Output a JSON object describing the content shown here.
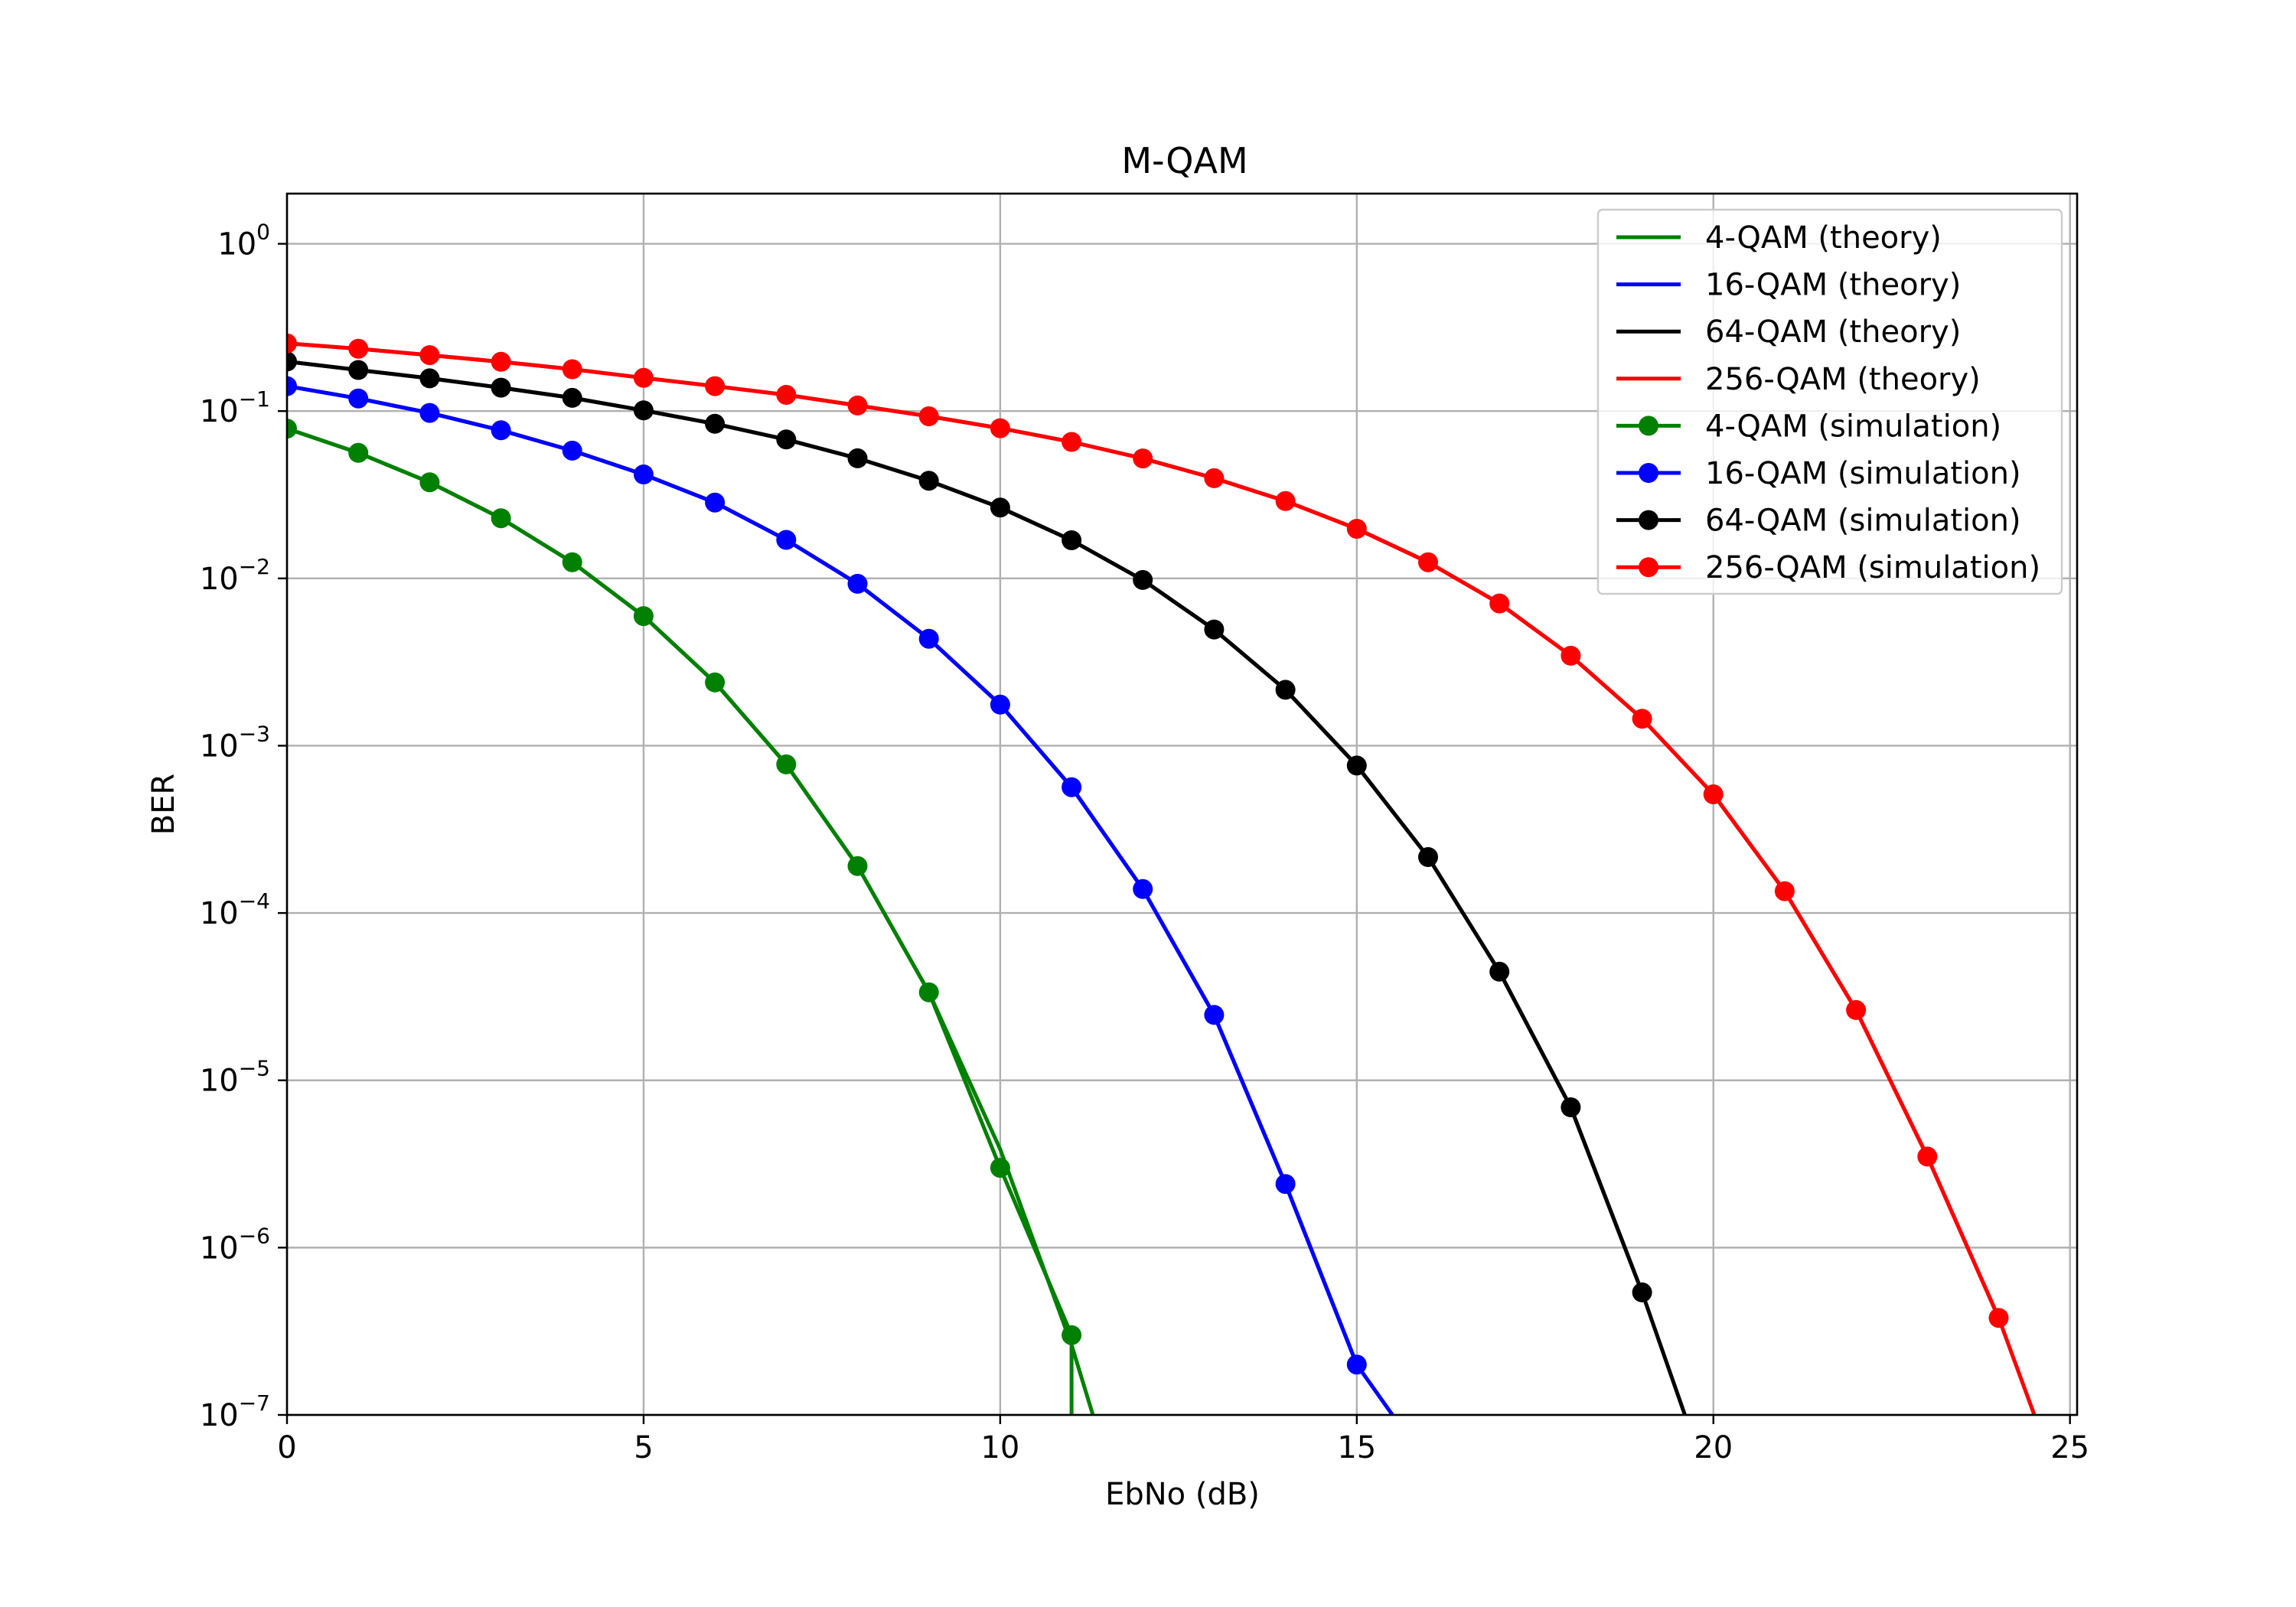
{
  "chart_data": {
    "type": "line",
    "title": "M-QAM",
    "xlabel": "EbNo (dB)",
    "ylabel": "BER",
    "xlim": [
      0,
      25.1
    ],
    "ylim_exponent": [
      -7,
      0.3
    ],
    "yscale": "log",
    "grid": true,
    "legend_position": "top-right",
    "xticks": [
      "0",
      "5",
      "10",
      "15",
      "20",
      "25"
    ],
    "xtick_values": [
      0,
      5,
      10,
      15,
      20,
      25
    ],
    "yticks_base": "10",
    "yticks_exponents": [
      "0",
      "−1",
      "−2",
      "−3",
      "−4",
      "−5",
      "−6",
      "−7"
    ],
    "ytick_values": [
      0,
      -1,
      -2,
      -3,
      -4,
      -5,
      -6,
      -7
    ],
    "series": [
      {
        "name": "4-QAM (theory)",
        "kind": "theory",
        "color": "#008000",
        "x": [
          0,
          1,
          2,
          3,
          4,
          5,
          6,
          7,
          8,
          9,
          10,
          11,
          11.3
        ],
        "y": [
          0.0786,
          0.0563,
          0.0375,
          0.0229,
          0.0125,
          0.00595,
          0.00239,
          0.000773,
          0.000191,
          3.36e-05,
          3.87e-06,
          2.62e-07,
          1e-07
        ]
      },
      {
        "name": "16-QAM (theory)",
        "kind": "theory",
        "color": "#0000ff",
        "x": [
          0,
          1,
          2,
          3,
          4,
          5,
          6,
          7,
          8,
          9,
          10,
          11,
          12,
          13,
          14,
          15,
          15.5
        ],
        "y": [
          0.141,
          0.119,
          0.0975,
          0.0768,
          0.058,
          0.0418,
          0.0284,
          0.017,
          0.00928,
          0.00436,
          0.00176,
          0.000565,
          0.000139,
          2.46e-05,
          2.4e-06,
          2e-07,
          1e-07
        ]
      },
      {
        "name": "64-QAM (theory)",
        "kind": "theory",
        "color": "#000000",
        "x": [
          0,
          1,
          2,
          3,
          4,
          5,
          6,
          7,
          8,
          9,
          10,
          11,
          12,
          13,
          14,
          15,
          16,
          17,
          18,
          19,
          19.6
        ],
        "y": [
          0.198,
          0.176,
          0.157,
          0.138,
          0.12,
          0.101,
          0.084,
          0.0677,
          0.0522,
          0.0383,
          0.0265,
          0.0169,
          0.00979,
          0.00495,
          0.00216,
          0.000761,
          0.000216,
          4.46e-05,
          6.9e-06,
          5.4e-07,
          1e-07
        ]
      },
      {
        "name": "256-QAM (theory)",
        "kind": "theory",
        "color": "#ff0000",
        "x": [
          0,
          1,
          2,
          3,
          4,
          5,
          6,
          7,
          8,
          9,
          10,
          11,
          12,
          13,
          14,
          15,
          16,
          17,
          18,
          19,
          20,
          21,
          22,
          23,
          24,
          24.5
        ],
        "y": [
          0.254,
          0.236,
          0.216,
          0.197,
          0.178,
          0.158,
          0.141,
          0.125,
          0.108,
          0.0931,
          0.079,
          0.0654,
          0.0521,
          0.0397,
          0.029,
          0.0198,
          0.0125,
          0.00708,
          0.00345,
          0.00145,
          0.000512,
          0.000135,
          2.63e-05,
          3.5e-06,
          3.8e-07,
          1e-07
        ]
      },
      {
        "name": "4-QAM (simulation)",
        "kind": "simulation",
        "color": "#008000",
        "x": [
          0,
          1,
          2,
          3,
          4,
          5,
          6,
          7,
          8,
          9,
          10,
          11
        ],
        "y": [
          0.0786,
          0.0563,
          0.0375,
          0.0229,
          0.0125,
          0.00595,
          0.00239,
          0.000773,
          0.000191,
          3.36e-05,
          3e-06,
          3e-07
        ],
        "drop_to": 1e-07
      },
      {
        "name": "16-QAM (simulation)",
        "kind": "simulation",
        "color": "#0000ff",
        "x": [
          0,
          1,
          2,
          3,
          4,
          5,
          6,
          7,
          8,
          9,
          10,
          11,
          12,
          13,
          14,
          15
        ],
        "y": [
          0.141,
          0.119,
          0.0975,
          0.0768,
          0.058,
          0.0418,
          0.0284,
          0.017,
          0.00928,
          0.00436,
          0.00176,
          0.000565,
          0.000139,
          2.46e-05,
          2.4e-06,
          2e-07
        ]
      },
      {
        "name": "64-QAM (simulation)",
        "kind": "simulation",
        "color": "#000000",
        "x": [
          0,
          1,
          2,
          3,
          4,
          5,
          6,
          7,
          8,
          9,
          10,
          11,
          12,
          13,
          14,
          15,
          16,
          17,
          18,
          19
        ],
        "y": [
          0.198,
          0.176,
          0.157,
          0.138,
          0.12,
          0.101,
          0.084,
          0.0677,
          0.0522,
          0.0383,
          0.0265,
          0.0169,
          0.00979,
          0.00495,
          0.00216,
          0.000761,
          0.000216,
          4.46e-05,
          6.9e-06,
          5.4e-07
        ]
      },
      {
        "name": "256-QAM (simulation)",
        "kind": "simulation",
        "color": "#ff0000",
        "x": [
          0,
          1,
          2,
          3,
          4,
          5,
          6,
          7,
          8,
          9,
          10,
          11,
          12,
          13,
          14,
          15,
          16,
          17,
          18,
          19,
          20,
          21,
          22,
          23,
          24
        ],
        "y": [
          0.254,
          0.236,
          0.216,
          0.197,
          0.178,
          0.158,
          0.141,
          0.125,
          0.108,
          0.0931,
          0.079,
          0.0654,
          0.0521,
          0.0397,
          0.029,
          0.0198,
          0.0125,
          0.00708,
          0.00345,
          0.00145,
          0.000512,
          0.000135,
          2.63e-05,
          3.5e-06,
          3.8e-07
        ]
      }
    ]
  }
}
